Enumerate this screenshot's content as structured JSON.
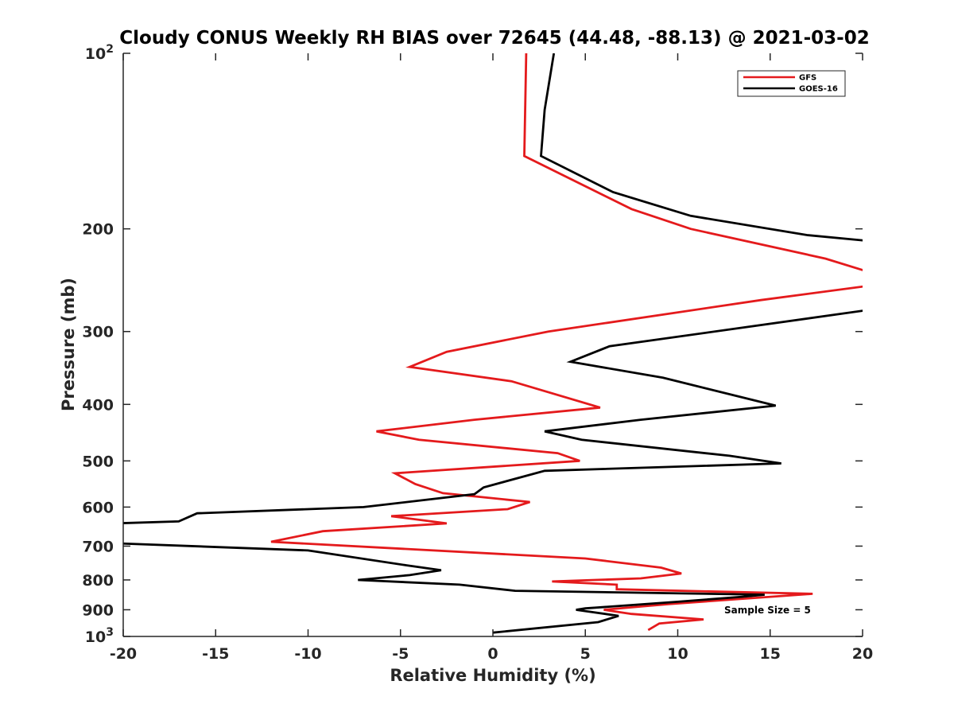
{
  "chart_data": {
    "type": "line",
    "title": "Cloudy CONUS Weekly RH BIAS over 72645 (44.48, -88.13) @ 2021-03-02",
    "xlabel": "Relative Humidity (%)",
    "ylabel": "Pressure (mb)",
    "xlim": [
      -20,
      20
    ],
    "ylim": [
      100,
      1000
    ],
    "y_scale": "log",
    "y_reversed": true,
    "x_ticks": [
      "-20",
      "-15",
      "-10",
      "-5",
      "0",
      "5",
      "10",
      "15",
      "20"
    ],
    "y_ticks": [
      {
        "value": 100,
        "base": "10",
        "exp": "2"
      },
      {
        "value": 200,
        "label": "200"
      },
      {
        "value": 300,
        "label": "300"
      },
      {
        "value": 400,
        "label": "400"
      },
      {
        "value": 500,
        "label": "500"
      },
      {
        "value": 600,
        "label": "600"
      },
      {
        "value": 700,
        "label": "700"
      },
      {
        "value": 800,
        "label": "800"
      },
      {
        "value": 900,
        "label": "900"
      },
      {
        "value": 1000,
        "base": "10",
        "exp": "3"
      }
    ],
    "grid": false,
    "legend_position": "top-right",
    "annotation": "Sample Size = 5",
    "series": [
      {
        "name": "GFS",
        "color": "#e41a1c",
        "points": [
          [
            1.8,
            100
          ],
          [
            1.7,
            150
          ],
          [
            7.5,
            185
          ],
          [
            10.7,
            200
          ],
          [
            18,
            225
          ],
          [
            20.5,
            238
          ],
          [
            20.5,
            250
          ],
          [
            14.5,
            265
          ],
          [
            3,
            300
          ],
          [
            -2.5,
            325
          ],
          [
            -4.5,
            345
          ],
          [
            1,
            365
          ],
          [
            5.8,
            405
          ],
          [
            -1,
            425
          ],
          [
            -6.3,
            445
          ],
          [
            -4,
            460
          ],
          [
            3.5,
            485
          ],
          [
            4.7,
            500
          ],
          [
            -5.3,
            525
          ],
          [
            -4.2,
            548
          ],
          [
            -2.7,
            568
          ],
          [
            2,
            588
          ],
          [
            0.8,
            605
          ],
          [
            -5.5,
            622
          ],
          [
            -2.5,
            640
          ],
          [
            -9.2,
            660
          ],
          [
            -12,
            688
          ],
          [
            5,
            735
          ],
          [
            9.1,
            762
          ],
          [
            10.2,
            780
          ],
          [
            8,
            795
          ],
          [
            3.2,
            805
          ],
          [
            6.7,
            815
          ],
          [
            6.7,
            830
          ],
          [
            17.3,
            845
          ],
          [
            9.5,
            880
          ],
          [
            6,
            900
          ],
          [
            7.5,
            915
          ],
          [
            11.4,
            935
          ],
          [
            9,
            950
          ],
          [
            8.4,
            975
          ]
        ]
      },
      {
        "name": "GOES-16",
        "color": "#000000",
        "points": [
          [
            3.3,
            100
          ],
          [
            2.8,
            125
          ],
          [
            2.6,
            150
          ],
          [
            6.5,
            173
          ],
          [
            10.7,
            190
          ],
          [
            17,
            205
          ],
          [
            20.5,
            210
          ],
          [
            20.5,
            275
          ],
          [
            6.3,
            318
          ],
          [
            4.2,
            338
          ],
          [
            9.2,
            360
          ],
          [
            15.3,
            402
          ],
          [
            8,
            425
          ],
          [
            2.8,
            445
          ],
          [
            4.8,
            460
          ],
          [
            12.8,
            490
          ],
          [
            15.6,
            505
          ],
          [
            2.8,
            520
          ],
          [
            -0.5,
            555
          ],
          [
            -1,
            570
          ],
          [
            -7,
            600
          ],
          [
            -16,
            615
          ],
          [
            -17,
            635
          ],
          [
            -20.5,
            640
          ],
          [
            -20.5,
            692
          ],
          [
            -10,
            712
          ],
          [
            -4.7,
            755
          ],
          [
            -2.8,
            770
          ],
          [
            -4.5,
            785
          ],
          [
            -7.3,
            800
          ],
          [
            -1.8,
            815
          ],
          [
            1.2,
            835
          ],
          [
            14.7,
            848
          ],
          [
            13.5,
            855
          ],
          [
            10,
            872
          ],
          [
            5,
            895
          ],
          [
            4.5,
            900
          ],
          [
            6.8,
            922
          ],
          [
            5.7,
            945
          ],
          [
            0,
            985
          ]
        ]
      }
    ]
  }
}
